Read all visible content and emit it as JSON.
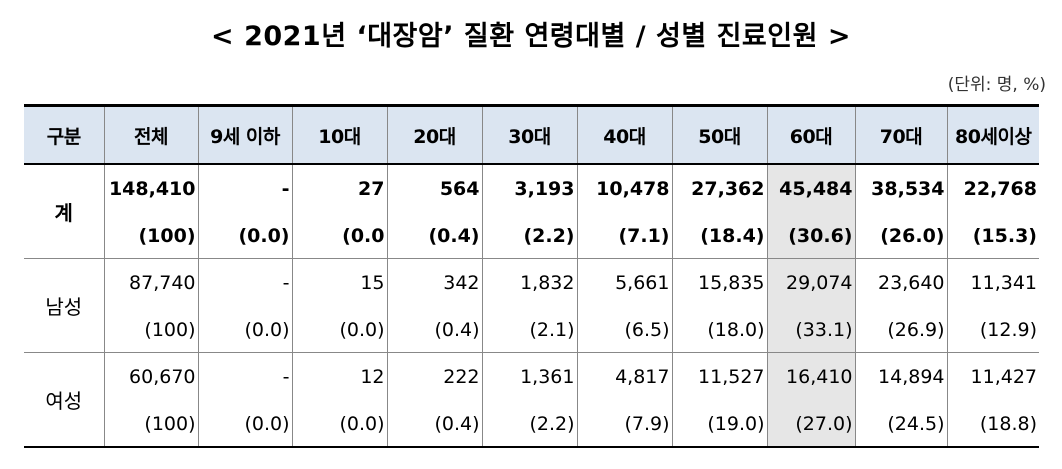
{
  "title": "< 2021년 ‘대장암’ 질환 연령대별 / 성별 진료인원 >",
  "unit": "(단위: 명, %)",
  "headers": [
    "구분",
    "전체",
    "9세 이하",
    "10대",
    "20대",
    "30대",
    "40대",
    "50대",
    "60대",
    "70대",
    "80세이상"
  ],
  "rows": [
    {
      "label": "계",
      "counts": [
        "148,410",
        "-",
        "27",
        "564",
        "3,193",
        "10,478",
        "27,362",
        "45,484",
        "38,534",
        "22,768"
      ],
      "shares": [
        "(100)",
        "(0.0)",
        "(0.0",
        "(0.4)",
        "(2.2)",
        "(7.1)",
        "(18.4)",
        "(30.6)",
        "(26.0)",
        "(15.3)"
      ]
    },
    {
      "label": "남성",
      "counts": [
        "87,740",
        "-",
        "15",
        "342",
        "1,832",
        "5,661",
        "15,835",
        "29,074",
        "23,640",
        "11,341"
      ],
      "shares": [
        "(100)",
        "(0.0)",
        "(0.0)",
        "(0.4)",
        "(2.1)",
        "(6.5)",
        "(18.0)",
        "(33.1)",
        "(26.9)",
        "(12.9)"
      ]
    },
    {
      "label": "여성",
      "counts": [
        "60,670",
        "-",
        "12",
        "222",
        "1,361",
        "4,817",
        "11,527",
        "16,410",
        "14,894",
        "11,427"
      ],
      "shares": [
        "(100)",
        "(0.0)",
        "(0.0)",
        "(0.4)",
        "(2.2)",
        "(7.9)",
        "(19.0)",
        "(27.0)",
        "(24.5)",
        "(18.8)"
      ]
    }
  ],
  "colors": {
    "header_bg": "#dbe5f1",
    "highlight_bg": "#e6e6e6"
  }
}
